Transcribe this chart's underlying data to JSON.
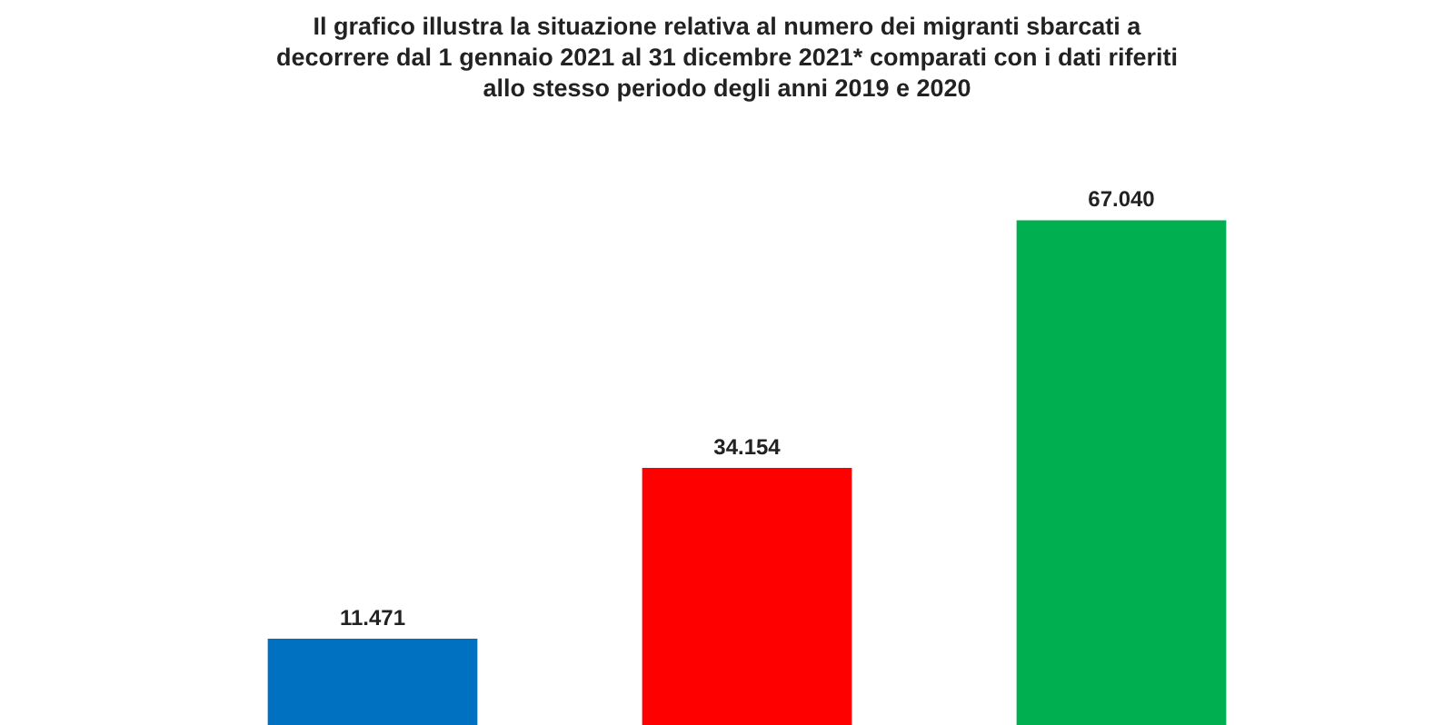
{
  "chart_data": {
    "type": "bar",
    "title": "Il grafico illustra la situazione relativa al numero dei migranti sbarcati a decorrere dal 1 gennaio 2021 al 31 dicembre 2021* comparati con i dati riferiti allo stesso periodo degli anni 2019  e 2020",
    "categories": [
      null,
      null,
      null
    ],
    "values": [
      11471,
      34154,
      67040
    ],
    "colors": [
      "#0070c0",
      "#ff0000",
      "#00b050"
    ],
    "value_labels": [
      "11.471",
      "34.154",
      "67.040"
    ]
  }
}
